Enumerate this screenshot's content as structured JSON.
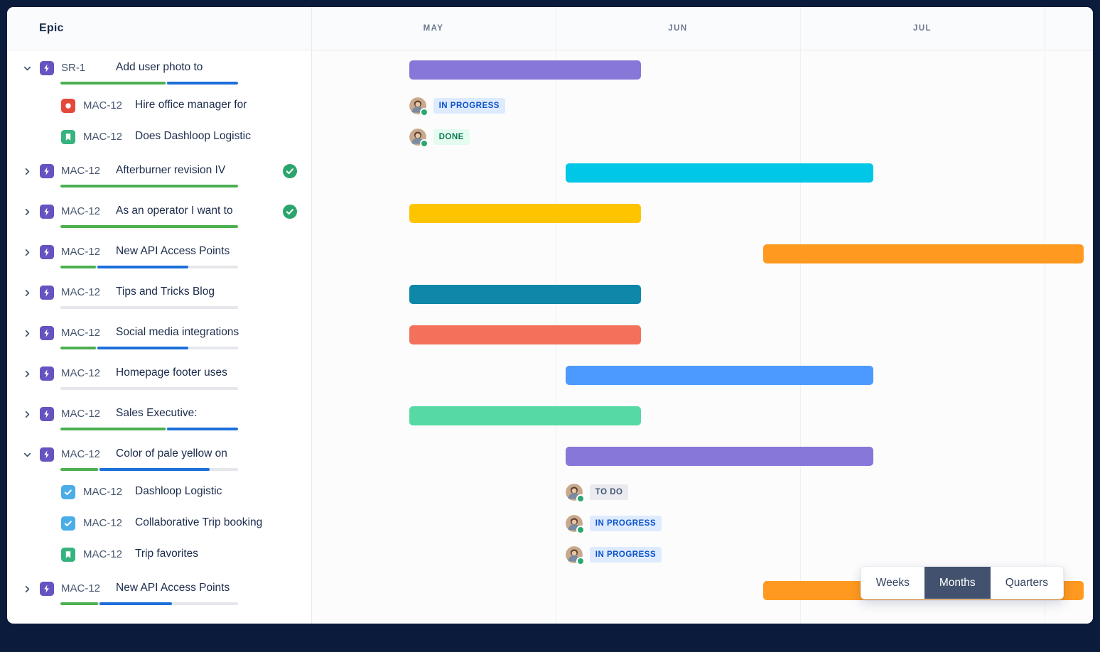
{
  "header": {
    "epic_label": "Epic",
    "months": [
      "MAY",
      "JUN",
      "JUL"
    ]
  },
  "view_toggle": {
    "options": [
      "Weeks",
      "Months",
      "Quarters"
    ],
    "selected": "Months"
  },
  "progress_colors": {
    "done": "#4CAF50",
    "in_progress": "#1D6FD9",
    "todo": "#E5E7EB"
  },
  "badge_styles": {
    "in_progress": {
      "bg": "#DEEBFF",
      "text": "#0B52CC"
    },
    "done": {
      "bg": "#E3FCEF",
      "text": "#0E7A52"
    },
    "todo": {
      "bg": "#E9EBF0",
      "text": "#44546F"
    }
  },
  "rows": [
    {
      "type": "epic",
      "expanded": true,
      "icon": "epic",
      "key": "SR-1",
      "title": "Add user photo to",
      "progress": [
        {
          "state": "done",
          "pct": 59
        },
        {
          "state": "in_progress",
          "pct": 40
        }
      ],
      "bar": {
        "color": "#8777D9",
        "start": 0.4,
        "end": 1.35
      }
    },
    {
      "type": "child",
      "icon": "bug",
      "key": "MAC-12",
      "title": "Hire office manager for",
      "status": {
        "label": "IN PROGRESS",
        "kind": "in_progress",
        "offset": 0.4
      }
    },
    {
      "type": "child",
      "icon": "story",
      "key": "MAC-12",
      "title": "Does Dashloop Logistic",
      "status": {
        "label": "DONE",
        "kind": "done",
        "offset": 0.4
      }
    },
    {
      "type": "epic",
      "expanded": false,
      "icon": "epic",
      "key": "MAC-12",
      "title": "Afterburner revision IV",
      "completed": true,
      "progress": [
        {
          "state": "done",
          "pct": 100
        }
      ],
      "bar": {
        "color": "#00C7E6",
        "start": 1.04,
        "end": 2.3
      }
    },
    {
      "type": "epic",
      "expanded": false,
      "icon": "epic",
      "key": "MAC-12",
      "title": "As an operator I want to",
      "completed": true,
      "progress": [
        {
          "state": "done",
          "pct": 100
        }
      ],
      "bar": {
        "color": "#FFC400",
        "start": 0.4,
        "end": 1.35
      }
    },
    {
      "type": "epic",
      "expanded": false,
      "icon": "epic",
      "key": "MAC-12",
      "title": "New API Access Points",
      "progress": [
        {
          "state": "done",
          "pct": 20
        },
        {
          "state": "in_progress",
          "pct": 51
        }
      ],
      "bar": {
        "color": "#FF991F",
        "start": 1.85,
        "end": 3.16
      }
    },
    {
      "type": "epic",
      "expanded": false,
      "icon": "epic",
      "key": "MAC-12",
      "title": "Tips and Tricks Blog",
      "progress": [],
      "bar": {
        "color": "#0E87A8",
        "start": 0.4,
        "end": 1.35
      }
    },
    {
      "type": "epic",
      "expanded": false,
      "icon": "epic",
      "key": "MAC-12",
      "title": "Social media integrations",
      "progress": [
        {
          "state": "done",
          "pct": 20
        },
        {
          "state": "in_progress",
          "pct": 51
        }
      ],
      "bar": {
        "color": "#F3705B",
        "start": 0.4,
        "end": 1.35
      }
    },
    {
      "type": "epic",
      "expanded": false,
      "icon": "epic",
      "key": "MAC-12",
      "title": "Homepage footer uses",
      "progress": [],
      "bar": {
        "color": "#4C9AFF",
        "start": 1.04,
        "end": 2.3
      }
    },
    {
      "type": "epic",
      "expanded": false,
      "icon": "epic",
      "key": "MAC-12",
      "title": "Sales Executive:",
      "progress": [
        {
          "state": "done",
          "pct": 59
        },
        {
          "state": "in_progress",
          "pct": 40
        }
      ],
      "bar": {
        "color": "#57D9A3",
        "start": 0.4,
        "end": 1.35
      }
    },
    {
      "type": "epic",
      "expanded": true,
      "icon": "epic",
      "key": "MAC-12",
      "title": "Color of pale yellow on",
      "progress": [
        {
          "state": "done",
          "pct": 21
        },
        {
          "state": "in_progress",
          "pct": 62
        }
      ],
      "bar": {
        "color": "#8777D9",
        "start": 1.04,
        "end": 2.3
      }
    },
    {
      "type": "child",
      "icon": "task",
      "key": "MAC-12",
      "title": "Dashloop Logistic",
      "status": {
        "label": "TO DO",
        "kind": "todo",
        "offset": 1.04
      }
    },
    {
      "type": "child",
      "icon": "task",
      "key": "MAC-12",
      "title": "Collaborative Trip booking",
      "status": {
        "label": "IN PROGRESS",
        "kind": "in_progress",
        "offset": 1.04
      }
    },
    {
      "type": "child",
      "icon": "story",
      "key": "MAC-12",
      "title": "Trip favorites",
      "status": {
        "label": "IN PROGRESS",
        "kind": "in_progress",
        "offset": 1.04
      }
    },
    {
      "type": "epic",
      "expanded": false,
      "icon": "epic",
      "key": "MAC-12",
      "title": "New API Access Points",
      "progress": [
        {
          "state": "done",
          "pct": 21
        },
        {
          "state": "in_progress",
          "pct": 41
        }
      ],
      "bar": {
        "color": "#FF991F",
        "start": 1.85,
        "end": 3.16
      }
    }
  ]
}
